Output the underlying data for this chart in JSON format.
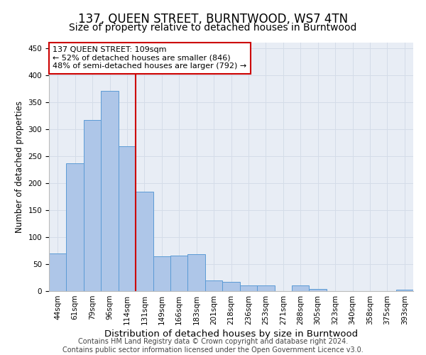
{
  "title": "137, QUEEN STREET, BURNTWOOD, WS7 4TN",
  "subtitle": "Size of property relative to detached houses in Burntwood",
  "xlabel": "Distribution of detached houses by size in Burntwood",
  "ylabel": "Number of detached properties",
  "categories": [
    "44sqm",
    "61sqm",
    "79sqm",
    "96sqm",
    "114sqm",
    "131sqm",
    "149sqm",
    "166sqm",
    "183sqm",
    "201sqm",
    "218sqm",
    "236sqm",
    "253sqm",
    "271sqm",
    "288sqm",
    "305sqm",
    "323sqm",
    "340sqm",
    "358sqm",
    "375sqm",
    "393sqm"
  ],
  "values": [
    70,
    237,
    317,
    370,
    268,
    184,
    65,
    66,
    69,
    20,
    17,
    10,
    10,
    0,
    10,
    4,
    0,
    0,
    0,
    0,
    3
  ],
  "bar_color": "#aec6e8",
  "bar_edge_color": "#5b9bd5",
  "vline_index": 4,
  "annotation_title": "137 QUEEN STREET: 109sqm",
  "annotation_text1": "← 52% of detached houses are smaller (846)",
  "annotation_text2": "48% of semi-detached houses are larger (792) →",
  "annotation_box_color": "#ffffff",
  "annotation_box_edge_color": "#cc0000",
  "vline_color": "#cc0000",
  "ylim": [
    0,
    460
  ],
  "yticks": [
    0,
    50,
    100,
    150,
    200,
    250,
    300,
    350,
    400,
    450
  ],
  "grid_color": "#d4dce8",
  "background_color": "#e8edf5",
  "footer_text": "Contains HM Land Registry data © Crown copyright and database right 2024.\nContains public sector information licensed under the Open Government Licence v3.0.",
  "title_fontsize": 12,
  "subtitle_fontsize": 10,
  "xlabel_fontsize": 9.5,
  "ylabel_fontsize": 8.5,
  "tick_fontsize": 7.5,
  "footer_fontsize": 7
}
